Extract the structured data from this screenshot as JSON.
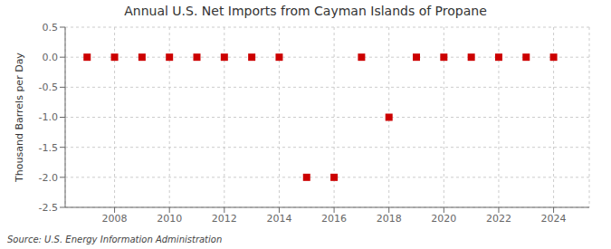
{
  "chart_data": {
    "type": "scatter",
    "title": "Annual U.S. Net Imports from Cayman Islands of Propane",
    "ylabel": "Thousand Barrels per Day",
    "source": "Source: U.S. Energy Information Administration",
    "x": [
      2007,
      2008,
      2009,
      2010,
      2011,
      2012,
      2013,
      2014,
      2015,
      2016,
      2017,
      2018,
      2019,
      2020,
      2021,
      2022,
      2023,
      2024
    ],
    "values": [
      0,
      0,
      0,
      0,
      0,
      0,
      0,
      0,
      -2,
      -2,
      0,
      -1,
      0,
      0,
      0,
      0,
      0,
      0
    ],
    "color": "#cc0000",
    "marker": "square",
    "grid": true,
    "xlim": [
      2006.2,
      2025.3
    ],
    "xticks": [
      2008,
      2010,
      2012,
      2014,
      2016,
      2018,
      2020,
      2022,
      2024
    ],
    "ylim": [
      -2.5,
      0.5
    ],
    "yticks": [
      0.5,
      {
        "value": 0,
        "label": "0.0"
      },
      -0.5,
      {
        "value": -1,
        "label": "-1.0"
      },
      -1.5,
      {
        "value": -2,
        "label": "-2.0"
      },
      -2.5
    ]
  }
}
